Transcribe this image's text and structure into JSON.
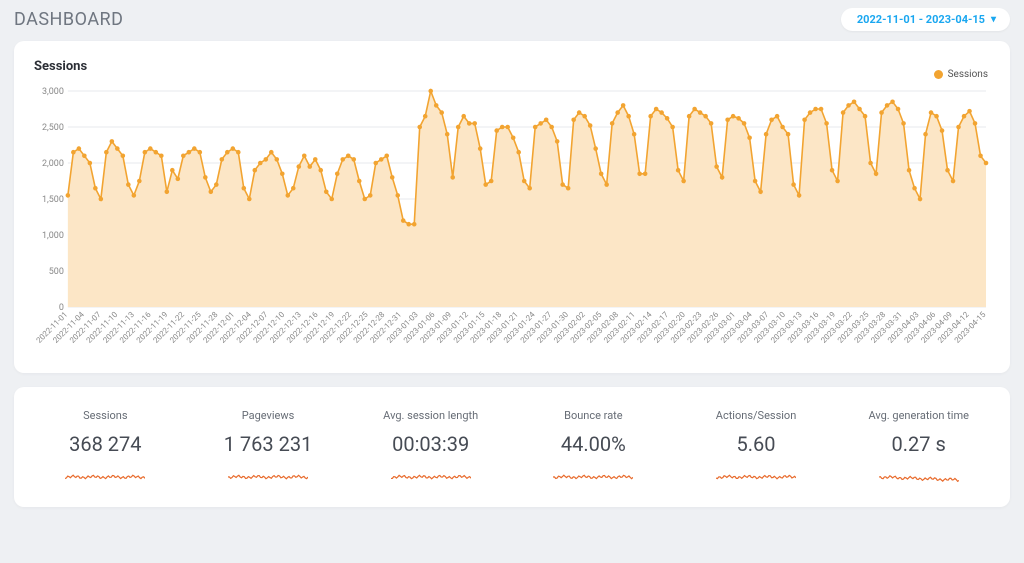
{
  "header": {
    "title": "DASHBOARD",
    "date_range": "2022-11-01 - 2023-04-15"
  },
  "sessions_chart": {
    "title": "Sessions",
    "legend_label": "Sessions",
    "type": "area",
    "line_color": "#F2A431",
    "fill_color": "#FCE6C6",
    "marker_color": "#F2A431",
    "marker_radius": 2.3,
    "line_width": 1.6,
    "grid_color": "#e7e9ec",
    "background_color": "#ffffff",
    "ylim": [
      0,
      3000
    ],
    "ytick_step": 500,
    "ytick_labels": [
      "0",
      "500",
      "1,000",
      "1,500",
      "2,000",
      "2,500",
      "3,000"
    ],
    "x_labels": [
      "2022-11-01",
      "2022-11-04",
      "2022-11-07",
      "2022-11-10",
      "2022-11-13",
      "2022-11-16",
      "2022-11-19",
      "2022-11-22",
      "2022-11-25",
      "2022-11-28",
      "2022-12-01",
      "2022-12-04",
      "2022-12-07",
      "2022-12-10",
      "2022-12-13",
      "2022-12-16",
      "2022-12-19",
      "2022-12-22",
      "2022-12-25",
      "2022-12-28",
      "2022-12-31",
      "2023-01-03",
      "2023-01-06",
      "2023-01-09",
      "2023-01-12",
      "2023-01-15",
      "2023-01-18",
      "2023-01-21",
      "2023-01-24",
      "2023-01-27",
      "2023-01-30",
      "2023-02-02",
      "2023-02-05",
      "2023-02-08",
      "2023-02-11",
      "2023-02-14",
      "2023-02-17",
      "2023-02-20",
      "2023-02-23",
      "2023-02-26",
      "2023-03-01",
      "2023-03-04",
      "2023-03-07",
      "2023-03-10",
      "2023-03-13",
      "2023-03-16",
      "2023-03-19",
      "2023-03-22",
      "2023-03-25",
      "2023-03-28",
      "2023-03-31",
      "2023-04-03",
      "2023-04-06",
      "2023-04-09",
      "2023-04-12",
      "2023-04-15"
    ],
    "values": [
      1550,
      2150,
      2200,
      2100,
      2000,
      1650,
      1500,
      2150,
      2300,
      2200,
      2100,
      1700,
      1550,
      1750,
      2150,
      2200,
      2150,
      2100,
      1600,
      1900,
      1780,
      2100,
      2150,
      2200,
      2150,
      1800,
      1600,
      1700,
      2050,
      2150,
      2200,
      2150,
      1650,
      1500,
      1900,
      2000,
      2050,
      2150,
      2050,
      1850,
      1550,
      1650,
      1950,
      2100,
      1950,
      2050,
      1900,
      1600,
      1500,
      1850,
      2050,
      2100,
      2050,
      1750,
      1500,
      1550,
      2000,
      2050,
      2100,
      1800,
      1550,
      1200,
      1150,
      1150,
      2500,
      2650,
      3000,
      2800,
      2700,
      2400,
      1800,
      2500,
      2650,
      2550,
      2550,
      2200,
      1700,
      1750,
      2450,
      2500,
      2500,
      2350,
      2150,
      1750,
      1650,
      2500,
      2550,
      2600,
      2500,
      2300,
      1700,
      1650,
      2600,
      2700,
      2650,
      2520,
      2200,
      1850,
      1700,
      2550,
      2700,
      2800,
      2650,
      2400,
      1850,
      1850,
      2650,
      2750,
      2700,
      2620,
      2500,
      1900,
      1750,
      2650,
      2750,
      2700,
      2650,
      2550,
      1950,
      1800,
      2600,
      2650,
      2620,
      2550,
      2350,
      1750,
      1600,
      2400,
      2600,
      2650,
      2500,
      2400,
      1700,
      1550,
      2600,
      2700,
      2750,
      2750,
      2550,
      1900,
      1750,
      2700,
      2800,
      2850,
      2750,
      2650,
      2000,
      1850,
      2700,
      2800,
      2850,
      2750,
      2550,
      1900,
      1650,
      1500,
      2400,
      2700,
      2650,
      2450,
      1900,
      1750,
      2500,
      2650,
      2720,
      2550,
      2100,
      2000
    ]
  },
  "stats": [
    {
      "label": "Sessions",
      "value": "368 274"
    },
    {
      "label": "Pageviews",
      "value": "1 763 231"
    },
    {
      "label": "Avg. session length",
      "value": "00:03:39"
    },
    {
      "label": "Bounce rate",
      "value": "44.00%"
    },
    {
      "label": "Actions/Session",
      "value": "5.60"
    },
    {
      "label": "Avg. generation time",
      "value": "0.27 s"
    }
  ],
  "sparkline": {
    "color": "#E86A2B",
    "width": 80,
    "height": 14,
    "stroke_width": 1.2
  }
}
